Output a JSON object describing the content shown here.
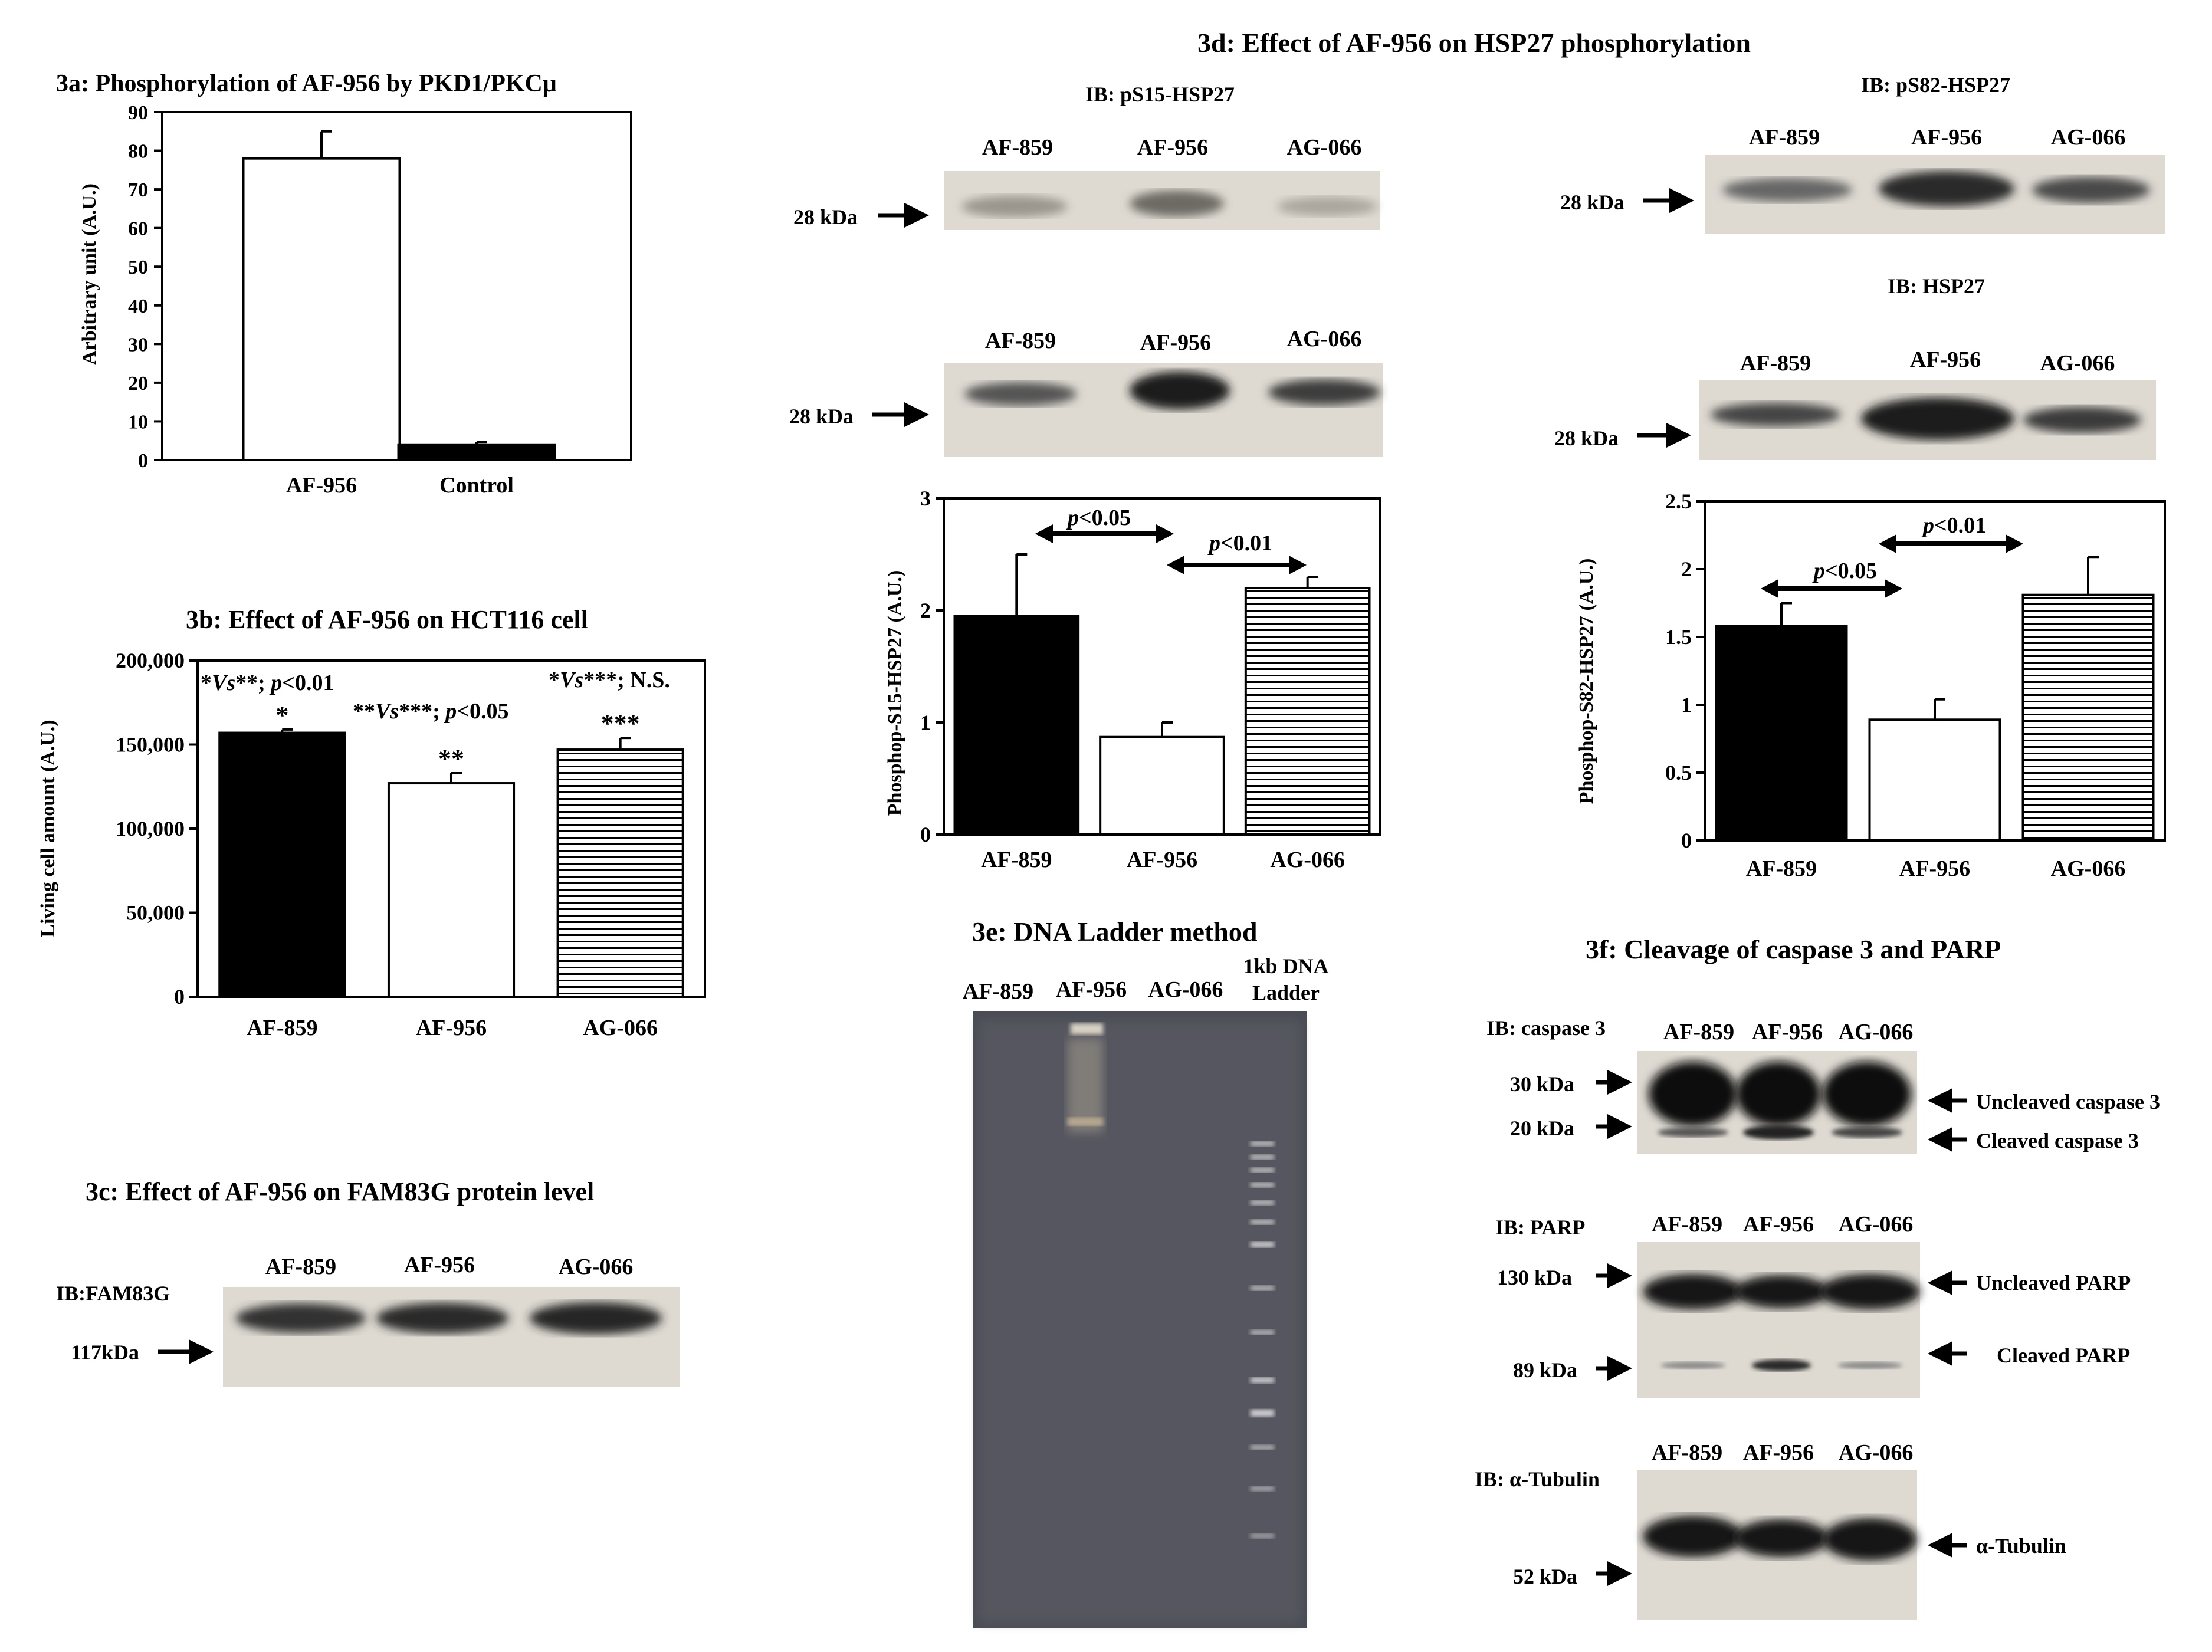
{
  "fig3a": {
    "title": "3a: Phosphorylation of AF-956 by PKD1/PKCμ",
    "chart_data": {
      "type": "bar",
      "categories": [
        "AF-956",
        "Control"
      ],
      "values": [
        78,
        4
      ],
      "errors": [
        7,
        0.7
      ],
      "ylabel": "Arbitrary unit (A.U.)",
      "ylim": [
        0,
        90
      ],
      "yticks": [
        "0",
        "10",
        "20",
        "30",
        "40",
        "50",
        "60",
        "70",
        "80",
        "90"
      ],
      "fills": [
        "#ffffff",
        "#000000"
      ]
    }
  },
  "fig3b": {
    "title": "3b: Effect of AF-956 on HCT116 cell",
    "chart_data": {
      "type": "bar",
      "categories": [
        "AF-859",
        "AF-956",
        "AG-066"
      ],
      "values": [
        157000,
        127000,
        147000
      ],
      "errors": [
        2000,
        6000,
        7000
      ],
      "ylabel": "Living cell amount (A.U.)",
      "ylim": [
        0,
        200000
      ],
      "yticks": [
        "0",
        "50,000",
        "100,000",
        "150,000",
        "200,000"
      ],
      "marks": [
        "*",
        "**",
        "***"
      ],
      "fills": [
        "#000000",
        "#ffffff",
        "striped"
      ]
    },
    "stat1_prefix": "*",
    "stat1_vs": "Vs",
    "stat1_suffix": "**; ",
    "stat1_p": "p",
    "stat1_val": "<0.01",
    "stat2_prefix": "*",
    "stat2_vs": "Vs",
    "stat2_suffix": "***; N.S.",
    "stat3_prefix": "**",
    "stat3_vs": "Vs",
    "stat3_suffix": "***; ",
    "stat3_p": "p",
    "stat3_val": "<0.05"
  },
  "fig3c": {
    "title": "3c: Effect of AF-956 on FAM83G protein level",
    "ib": "IB:FAM83G",
    "marker": "117kDa",
    "lanes": [
      "AF-859",
      "AF-956",
      "AG-066"
    ]
  },
  "fig3d": {
    "title": "3d: Effect of AF-956 on HSP27 phosphorylation",
    "ib_ps15": "IB: pS15-HSP27",
    "ib_ps82": "IB: pS82-HSP27",
    "ib_hsp27": "IB: HSP27",
    "marker": "28 kDa",
    "lanes": [
      "AF-859",
      "AF-956",
      "AG-066"
    ],
    "left_chart": {
      "type": "bar",
      "categories": [
        "AF-859",
        "AF-956",
        "AG-066"
      ],
      "values": [
        1.95,
        0.87,
        2.2
      ],
      "errors": [
        0.55,
        0.13,
        0.1
      ],
      "ylabel": "Phosphop-S15-HSP27 (A.U.)",
      "ylim": [
        0,
        3
      ],
      "yticks": [
        "0",
        "1",
        "2",
        "3"
      ],
      "fills": [
        "#000000",
        "#ffffff",
        "striped"
      ],
      "p_left": "<0.05",
      "p_right": "<0.01",
      "p": "p"
    },
    "right_chart": {
      "type": "bar",
      "categories": [
        "AF-859",
        "AF-956",
        "AG-066"
      ],
      "values": [
        1.58,
        0.89,
        1.81
      ],
      "errors": [
        0.17,
        0.15,
        0.28
      ],
      "ylabel": "Phosphop-S82-HSP27 (A.U.)",
      "ylim": [
        0,
        2.5
      ],
      "yticks": [
        "0",
        "0.5",
        "1",
        "1.5",
        "2",
        "2.5"
      ],
      "fills": [
        "#000000",
        "#ffffff",
        "striped"
      ],
      "p_left": "<0.05",
      "p_right": "<0.01",
      "p": "p"
    }
  },
  "fig3e": {
    "title": "3e: DNA Ladder method",
    "lanes": [
      "AF-859",
      "AF-956",
      "AG-066"
    ],
    "ladder_line1": "1kb DNA",
    "ladder_line2": "Ladder"
  },
  "fig3f": {
    "title": "3f: Cleavage of caspase 3 and PARP",
    "lanes": [
      "AF-859",
      "AF-956",
      "AG-066"
    ],
    "ib_casp": "IB: caspase 3",
    "casp_m30": "30 kDa",
    "casp_m20": "20 kDa",
    "casp_uncleaved": "Uncleaved caspase 3",
    "casp_cleaved": "Cleaved caspase 3",
    "ib_parp": "IB: PARP",
    "parp_m130": "130 kDa",
    "parp_m89": "89 kDa",
    "parp_uncleaved": "Uncleaved PARP",
    "parp_cleaved": "Cleaved PARP",
    "ib_tub": "IB: α-Tubulin",
    "tub_m52": "52 kDa",
    "tub_label": "α-Tubulin"
  }
}
